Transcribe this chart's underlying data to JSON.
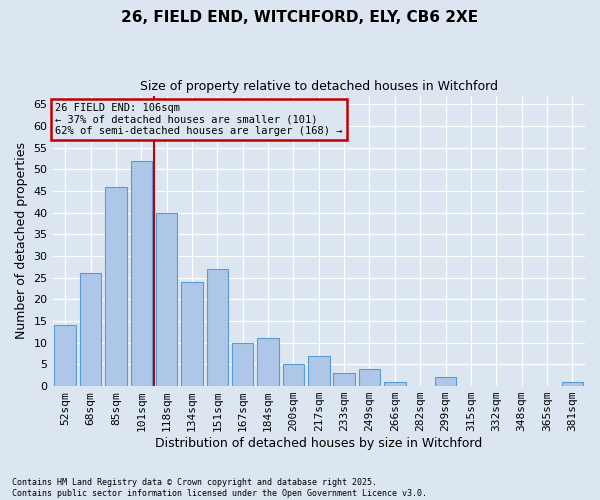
{
  "title_line1": "26, FIELD END, WITCHFORD, ELY, CB6 2XE",
  "title_line2": "Size of property relative to detached houses in Witchford",
  "xlabel": "Distribution of detached houses by size in Witchford",
  "ylabel": "Number of detached properties",
  "categories": [
    "52sqm",
    "68sqm",
    "85sqm",
    "101sqm",
    "118sqm",
    "134sqm",
    "151sqm",
    "167sqm",
    "184sqm",
    "200sqm",
    "217sqm",
    "233sqm",
    "249sqm",
    "266sqm",
    "282sqm",
    "299sqm",
    "315sqm",
    "332sqm",
    "348sqm",
    "365sqm",
    "381sqm"
  ],
  "values": [
    14,
    26,
    46,
    52,
    40,
    24,
    27,
    10,
    11,
    5,
    7,
    3,
    4,
    1,
    0,
    2,
    0,
    0,
    0,
    0,
    1
  ],
  "bar_color": "#aec6e8",
  "bar_edge_color": "#5b9bd5",
  "background_color": "#dce6f1",
  "grid_color": "#ffffff",
  "vline_pos": 3.5,
  "vline_color": "#c00000",
  "annotation_title": "26 FIELD END: 106sqm",
  "annotation_line1": "← 37% of detached houses are smaller (101)",
  "annotation_line2": "62% of semi-detached houses are larger (168) →",
  "annotation_box_color": "#c00000",
  "ylim": [
    0,
    67
  ],
  "yticks": [
    0,
    5,
    10,
    15,
    20,
    25,
    30,
    35,
    40,
    45,
    50,
    55,
    60,
    65
  ],
  "footnote_line1": "Contains HM Land Registry data © Crown copyright and database right 2025.",
  "footnote_line2": "Contains public sector information licensed under the Open Government Licence v3.0.",
  "figwidth": 6.0,
  "figheight": 5.0,
  "dpi": 100
}
